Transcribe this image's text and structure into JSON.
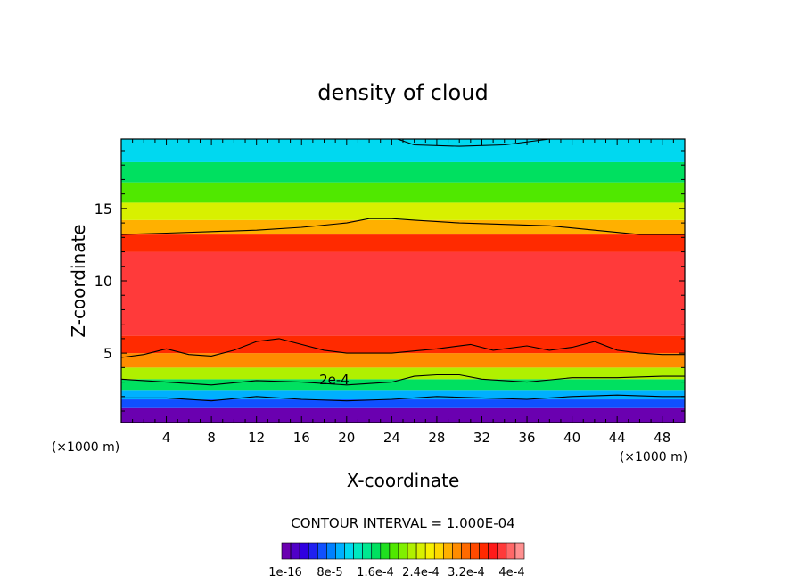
{
  "chart_data": {
    "type": "heatmap",
    "title": "density of cloud",
    "xlabel": "X-coordinate",
    "ylabel": "Z-coordinate",
    "x_unit_label": "(×1000 m)",
    "x_unit_label_right": "(×1000 m)",
    "xlim": [
      0,
      50
    ],
    "ylim": [
      0.2,
      19.8
    ],
    "x_ticks": [
      4,
      8,
      12,
      16,
      20,
      24,
      28,
      32,
      36,
      40,
      44,
      48
    ],
    "y_ticks": [
      5,
      10,
      15
    ],
    "contour_interval_text": "CONTOUR INTERVAL = 1.000E-04",
    "contour_label": "2e-4",
    "colorbar": {
      "min": 1e-16,
      "max": 0.0004,
      "labels": [
        "1e-16",
        "8e-5",
        "1.6e-4",
        "2.4e-4",
        "3.2e-4",
        "4e-4"
      ],
      "colors": [
        "#6a00b0",
        "#5000c8",
        "#3000e0",
        "#2020f0",
        "#1050ff",
        "#0080ff",
        "#00b0ff",
        "#00d8f0",
        "#00e8c0",
        "#00e890",
        "#00e060",
        "#20e020",
        "#50e800",
        "#80f000",
        "#b0f000",
        "#d8f000",
        "#f8f000",
        "#ffd800",
        "#ffb000",
        "#ff8c00",
        "#ff6a00",
        "#ff4a00",
        "#ff2a00",
        "#ff1a1a",
        "#ff3a3a",
        "#ff6868",
        "#ff9090"
      ]
    },
    "bands": [
      {
        "z0": 0.2,
        "z1": 1.2,
        "value": 1e-05
      },
      {
        "z0": 1.2,
        "z1": 1.8,
        "value": 6e-05
      },
      {
        "z0": 1.8,
        "z1": 2.4,
        "value": 0.0001
      },
      {
        "z0": 2.4,
        "z1": 3.2,
        "value": 0.00016
      },
      {
        "z0": 3.2,
        "z1": 4.0,
        "value": 0.00022
      },
      {
        "z0": 4.0,
        "z1": 5.0,
        "value": 0.00029
      },
      {
        "z0": 5.0,
        "z1": 6.2,
        "value": 0.00034
      },
      {
        "z0": 6.2,
        "z1": 12.0,
        "value": 0.00036
      },
      {
        "z0": 12.0,
        "z1": 13.2,
        "value": 0.00033
      },
      {
        "z0": 13.2,
        "z1": 14.2,
        "value": 0.00027
      },
      {
        "z0": 14.2,
        "z1": 15.4,
        "value": 0.00023
      },
      {
        "z0": 15.4,
        "z1": 16.8,
        "value": 0.00019
      },
      {
        "z0": 16.8,
        "z1": 18.2,
        "value": 0.00015
      },
      {
        "z0": 18.2,
        "z1": 19.8,
        "value": 0.00011
      }
    ],
    "contours": [
      {
        "level": 0.0001,
        "points": [
          [
            0,
            1.9
          ],
          [
            4,
            1.9
          ],
          [
            8,
            1.7
          ],
          [
            12,
            2.0
          ],
          [
            16,
            1.8
          ],
          [
            20,
            1.7
          ],
          [
            24,
            1.8
          ],
          [
            28,
            2.0
          ],
          [
            32,
            1.9
          ],
          [
            36,
            1.8
          ],
          [
            40,
            2.0
          ],
          [
            44,
            2.1
          ],
          [
            48,
            2.0
          ],
          [
            50,
            2.0
          ]
        ]
      },
      {
        "level": 0.0002,
        "points": [
          [
            0,
            3.2
          ],
          [
            4,
            3.0
          ],
          [
            8,
            2.8
          ],
          [
            12,
            3.1
          ],
          [
            16,
            3.0
          ],
          [
            20,
            2.8
          ],
          [
            22,
            2.9
          ],
          [
            24,
            3.0
          ],
          [
            26,
            3.4
          ],
          [
            28,
            3.5
          ],
          [
            30,
            3.5
          ],
          [
            32,
            3.2
          ],
          [
            36,
            3.0
          ],
          [
            40,
            3.3
          ],
          [
            44,
            3.3
          ],
          [
            48,
            3.4
          ],
          [
            50,
            3.4
          ]
        ]
      },
      {
        "level": 0.0003,
        "points": [
          [
            0,
            4.7
          ],
          [
            2,
            4.9
          ],
          [
            4,
            5.3
          ],
          [
            6,
            4.9
          ],
          [
            8,
            4.8
          ],
          [
            10,
            5.2
          ],
          [
            12,
            5.8
          ],
          [
            14,
            6.0
          ],
          [
            16,
            5.6
          ],
          [
            18,
            5.2
          ],
          [
            20,
            5.0
          ],
          [
            24,
            5.0
          ],
          [
            28,
            5.3
          ],
          [
            31,
            5.6
          ],
          [
            33,
            5.2
          ],
          [
            36,
            5.5
          ],
          [
            38,
            5.2
          ],
          [
            40,
            5.4
          ],
          [
            42,
            5.8
          ],
          [
            44,
            5.2
          ],
          [
            46,
            5.0
          ],
          [
            48,
            4.9
          ],
          [
            50,
            4.9
          ]
        ]
      },
      {
        "level": 0.0003,
        "points": [
          [
            0,
            13.2
          ],
          [
            4,
            13.3
          ],
          [
            8,
            13.4
          ],
          [
            12,
            13.5
          ],
          [
            16,
            13.7
          ],
          [
            20,
            14.0
          ],
          [
            22,
            14.3
          ],
          [
            24,
            14.3
          ],
          [
            26,
            14.2
          ],
          [
            30,
            14.0
          ],
          [
            34,
            13.9
          ],
          [
            38,
            13.8
          ],
          [
            42,
            13.5
          ],
          [
            46,
            13.2
          ],
          [
            50,
            13.2
          ]
        ]
      },
      {
        "level": 0.0001,
        "points": [
          [
            24.5,
            19.8
          ],
          [
            26,
            19.4
          ],
          [
            30,
            19.3
          ],
          [
            34,
            19.4
          ],
          [
            38,
            19.8
          ]
        ]
      }
    ]
  }
}
